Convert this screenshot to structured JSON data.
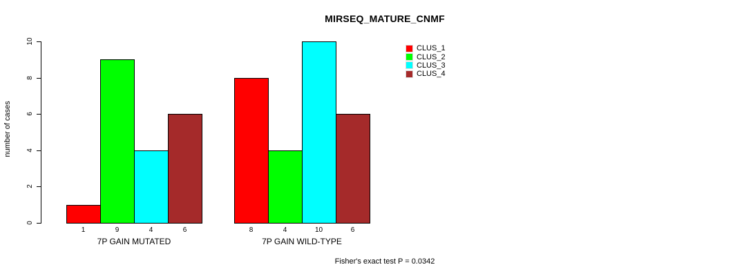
{
  "chart_data": {
    "type": "bar",
    "title": "MIRSEQ_MATURE_CNMF",
    "ylabel": "number of cases",
    "xlabel": "",
    "ylim": [
      0,
      10
    ],
    "yticks": [
      0,
      2,
      4,
      6,
      8,
      10
    ],
    "categories": [
      "7P GAIN MUTATED",
      "7P GAIN WILD-TYPE"
    ],
    "series": [
      {
        "name": "CLUS_1",
        "color": "#ff0000",
        "values": [
          1,
          8
        ]
      },
      {
        "name": "CLUS_2",
        "color": "#00ff00",
        "values": [
          9,
          4
        ]
      },
      {
        "name": "CLUS_3",
        "color": "#00ffff",
        "values": [
          4,
          10
        ]
      },
      {
        "name": "CLUS_4",
        "color": "#a52a2a",
        "values": [
          6,
          6
        ]
      }
    ],
    "bar_value_labels_shown": true,
    "legend_position": "top-right",
    "grid": false,
    "background": "#ffffff",
    "axis_color": "#000000",
    "annotation": "Fisher's exact test P = 0.0342"
  }
}
